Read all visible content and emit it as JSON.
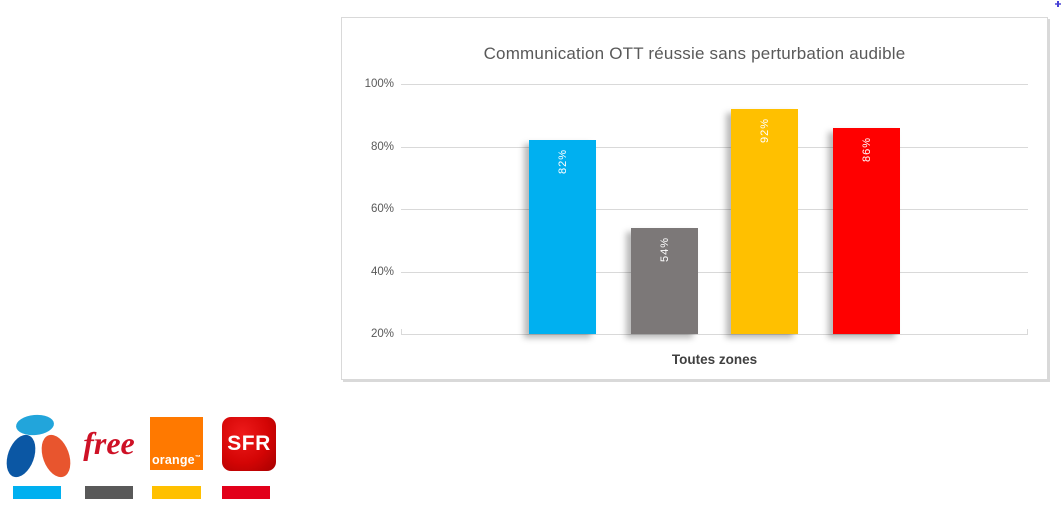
{
  "chart_data": {
    "type": "bar",
    "title": "Communication OTT réussie sans perturbation audible",
    "categories": [
      "Toutes zones"
    ],
    "series": [
      {
        "name": "Bouygues Telecom",
        "values": [
          82
        ],
        "data_label": "82%",
        "color": "#00B0F0"
      },
      {
        "name": "Free",
        "values": [
          54
        ],
        "data_label": "54%",
        "color": "#7C7878"
      },
      {
        "name": "Orange",
        "values": [
          92
        ],
        "data_label": "92%",
        "color": "#FFC000"
      },
      {
        "name": "SFR",
        "values": [
          86
        ],
        "data_label": "86%",
        "color": "#FF0000"
      }
    ],
    "xlabel": "Toutes zones",
    "ylabel": "",
    "ylim": [
      20,
      100
    ],
    "y_ticks": [
      {
        "label": "100%",
        "value": 100
      },
      {
        "label": "80%",
        "value": 80
      },
      {
        "label": "60%",
        "value": 60
      },
      {
        "label": "40%",
        "value": 40
      },
      {
        "label": "20%",
        "value": 20
      }
    ],
    "grid": true,
    "legend_position": "outside-bottom-left (operator logos with color swatches)"
  },
  "chart": {
    "title": "Communication OTT réussie sans perturbation audible",
    "category_label": "Toutes zones"
  },
  "legend": {
    "logos": {
      "bouygues_name": "Bouygues Telecom",
      "free_text": "free",
      "orange_text": "orange",
      "orange_trademark": "™",
      "sfr_text": "SFR"
    },
    "items": [
      {
        "operator": "Bouygues Telecom",
        "swatch_color": "#00B0F0"
      },
      {
        "operator": "Free",
        "swatch_color": "#595959"
      },
      {
        "operator": "Orange",
        "swatch_color": "#FFC000"
      },
      {
        "operator": "SFR",
        "swatch_color": "#E2001A"
      }
    ]
  },
  "colors": {
    "chart_border": "#D9D9D9",
    "gridline": "#D9D9D9",
    "title_text": "#595959",
    "tick_text": "#595959",
    "category_text": "#404040",
    "bouygues_logo": {
      "cyan": "#22A5DB",
      "blue": "#0B57A4",
      "orange": "#E8552E"
    },
    "free_logo_red": "#CE1126",
    "orange_logo_bg": "#FF7900",
    "sfr_logo_red": "#D40505"
  }
}
